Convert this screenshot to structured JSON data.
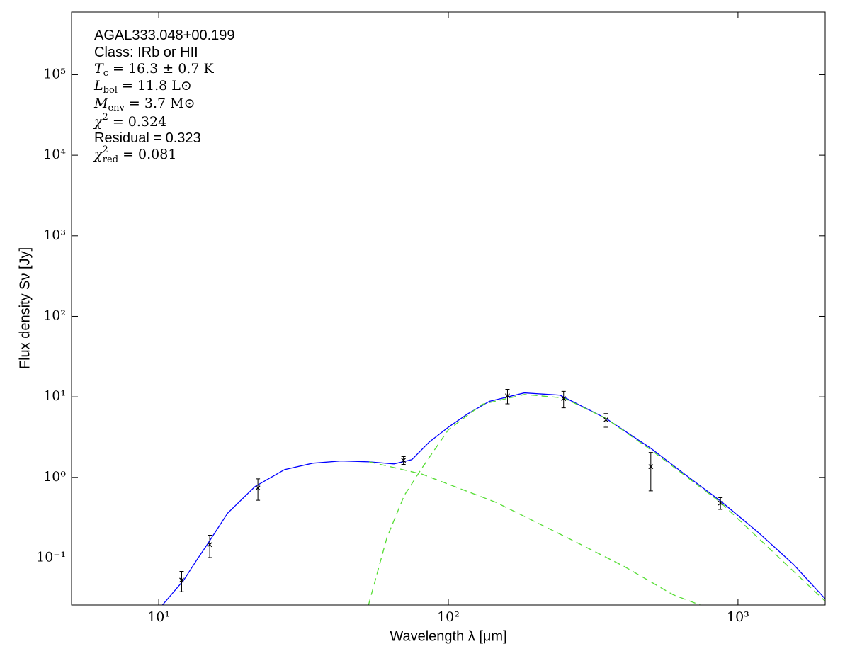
{
  "chart_data": {
    "type": "line",
    "xlabel": "Wavelength λ [μm]",
    "ylabel": "Flux density Sν [Jy]",
    "xscale": "log",
    "yscale": "log",
    "xlim": [
      5,
      2000
    ],
    "ylim": [
      0.026,
      600000
    ],
    "xticks": [
      {
        "value": 10,
        "label": "10¹"
      },
      {
        "value": 100,
        "label": "10²"
      },
      {
        "value": 1000,
        "label": "10³"
      }
    ],
    "yticks": [
      {
        "value": 0.1,
        "label": "10⁻¹"
      },
      {
        "value": 1,
        "label": "10⁰"
      },
      {
        "value": 10,
        "label": "10¹"
      },
      {
        "value": 100,
        "label": "10²"
      },
      {
        "value": 1000,
        "label": "10³"
      },
      {
        "value": 10000,
        "label": "10⁴"
      },
      {
        "value": 100000,
        "label": "10⁵"
      }
    ],
    "annotations": [
      {
        "text": "AGAL333.048+00.199"
      },
      {
        "text": "Class: IRb or HII"
      },
      {
        "symbol": "T",
        "sub": "c",
        "text": " = 16.3 ± 0.7 K"
      },
      {
        "symbol": "L",
        "sub": "bol",
        "text": " = 11.8 L⊙"
      },
      {
        "symbol": "M",
        "sub": "env",
        "text": " = 3.7 M⊙"
      },
      {
        "symbol": "χ",
        "sup": "2",
        "text": " = 0.324"
      },
      {
        "text": "Residual = 0.323"
      },
      {
        "symbol": "χ",
        "sup": "2",
        "sub": "red",
        "text": " = 0.081"
      }
    ],
    "points": {
      "color": "#000000",
      "x": [
        12,
        15,
        22,
        70,
        160,
        250,
        350,
        500,
        870
      ],
      "values": [
        0.053,
        0.146,
        0.74,
        1.63,
        10.3,
        9.5,
        5.2,
        1.36,
        0.48
      ],
      "yerr": [
        0.015,
        0.045,
        0.22,
        0.18,
        2.1,
        2.2,
        1.0,
        0.68,
        0.08
      ]
    },
    "series": [
      {
        "color": "#0000ff",
        "dashed": false,
        "x": [
          10.3,
          12.2,
          13.5,
          14.8,
          17.3,
          21.5,
          27.2,
          34,
          42.6,
          53.3,
          64.9,
          74.8,
          86,
          100,
          117,
          138.6,
          183,
          243,
          350,
          500,
          667,
          870,
          1170,
          1550,
          2000
        ],
        "values": [
          0.026,
          0.053,
          0.093,
          0.152,
          0.36,
          0.77,
          1.25,
          1.5,
          1.6,
          1.56,
          1.47,
          1.66,
          2.76,
          4.2,
          6.2,
          8.8,
          11.2,
          10.5,
          5.4,
          2.3,
          1.04,
          0.51,
          0.21,
          0.084,
          0.031
        ]
      },
      {
        "color": "#55dd33",
        "dashed": true,
        "x": [
          53.3,
          81,
          146,
          256,
          403,
          596,
          740
        ],
        "values": [
          1.56,
          1.1,
          0.49,
          0.18,
          0.079,
          0.035,
          0.026
        ]
      },
      {
        "color": "#55dd33",
        "dashed": true,
        "x": [
          53,
          61.4,
          70.5,
          81,
          100,
          131,
          183,
          250,
          350,
          500,
          870,
          2000
        ],
        "values": [
          0.026,
          0.18,
          0.6,
          1.3,
          3.9,
          8.1,
          10.7,
          9.7,
          5.4,
          2.2,
          0.49,
          0.029
        ]
      }
    ]
  }
}
